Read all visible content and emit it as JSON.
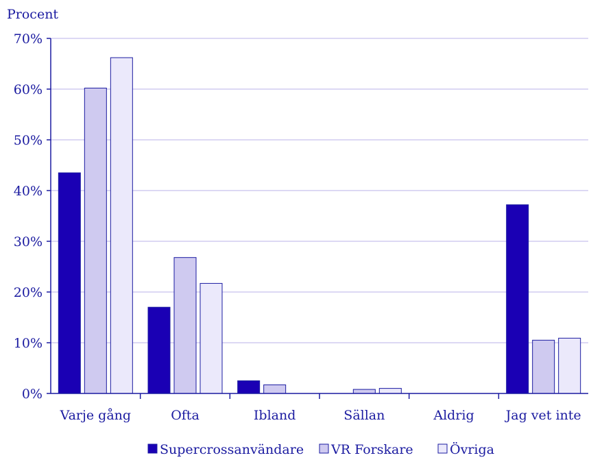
{
  "chart_data": {
    "type": "bar",
    "ylabel": "Procent",
    "xlabel": "",
    "ylim": [
      0,
      70
    ],
    "ytick_step": 10,
    "ytick_suffix": "%",
    "grid": true,
    "legend_position": "bottom",
    "categories": [
      "Varje gång",
      "Ofta",
      "Ibland",
      "Sällan",
      "Aldrig",
      "Jag vet inte"
    ],
    "series": [
      {
        "name": "Supercrossanvändare",
        "values": [
          43.5,
          17.0,
          2.5,
          0.0,
          0.0,
          37.2
        ],
        "color": "#1a00b4"
      },
      {
        "name": "VR Forskare",
        "values": [
          60.2,
          26.8,
          1.7,
          0.8,
          0.0,
          10.5
        ],
        "color": "#cfcaf0"
      },
      {
        "name": "Övriga",
        "values": [
          66.2,
          21.7,
          0.0,
          1.0,
          0.0,
          10.9
        ],
        "color": "#ebe9fb"
      }
    ],
    "colors": {
      "text": "#1a1aa0",
      "axis": "#1a1aa0",
      "grid": "#d0ccf0",
      "bar_stroke": "#1a1aa0"
    }
  }
}
